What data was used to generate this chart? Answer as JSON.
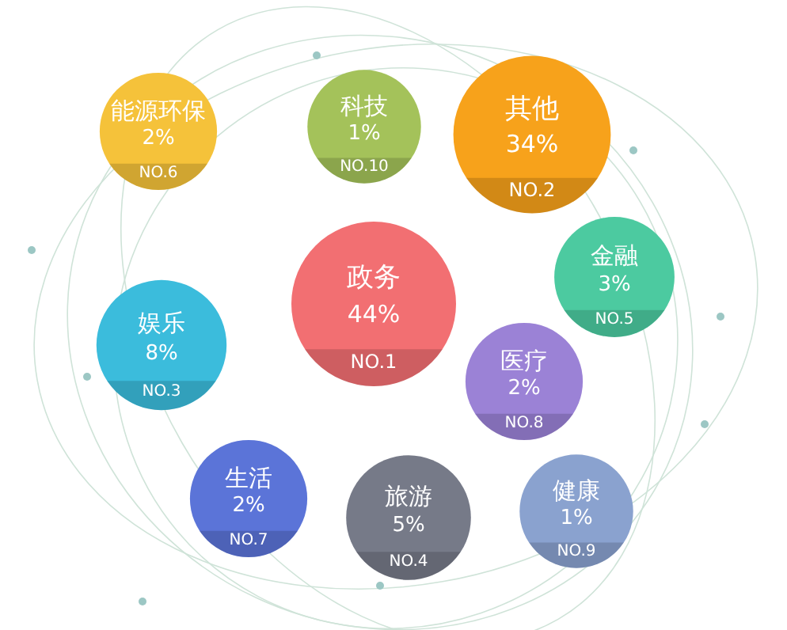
{
  "chart_data": {
    "type": "other",
    "categories": [
      "能源环保",
      "科技",
      "其他",
      "金融",
      "政务",
      "娱乐",
      "医疗",
      "生活",
      "旅游",
      "健康"
    ],
    "values": [
      2,
      1,
      34,
      3,
      44,
      8,
      2,
      2,
      5,
      1
    ],
    "value_labels": [
      "2%",
      "1%",
      "34%",
      "3%",
      "44%",
      "8%",
      "2%",
      "2%",
      "5%",
      "1%"
    ],
    "colors": [
      "#f5c23a",
      "#a4c25a",
      "#f7a21b",
      "#4ccaa0",
      "#f26f72",
      "#3bbcdc",
      "#9b82d6",
      "#5b74d8",
      "#767a88",
      "#8aa2cf"
    ],
    "annotations": [
      "NO.6",
      "NO.10",
      "NO.2",
      "NO.5",
      "NO.1",
      "NO.3",
      "NO.8",
      "NO.7",
      "NO.4",
      "NO.9"
    ]
  }
}
